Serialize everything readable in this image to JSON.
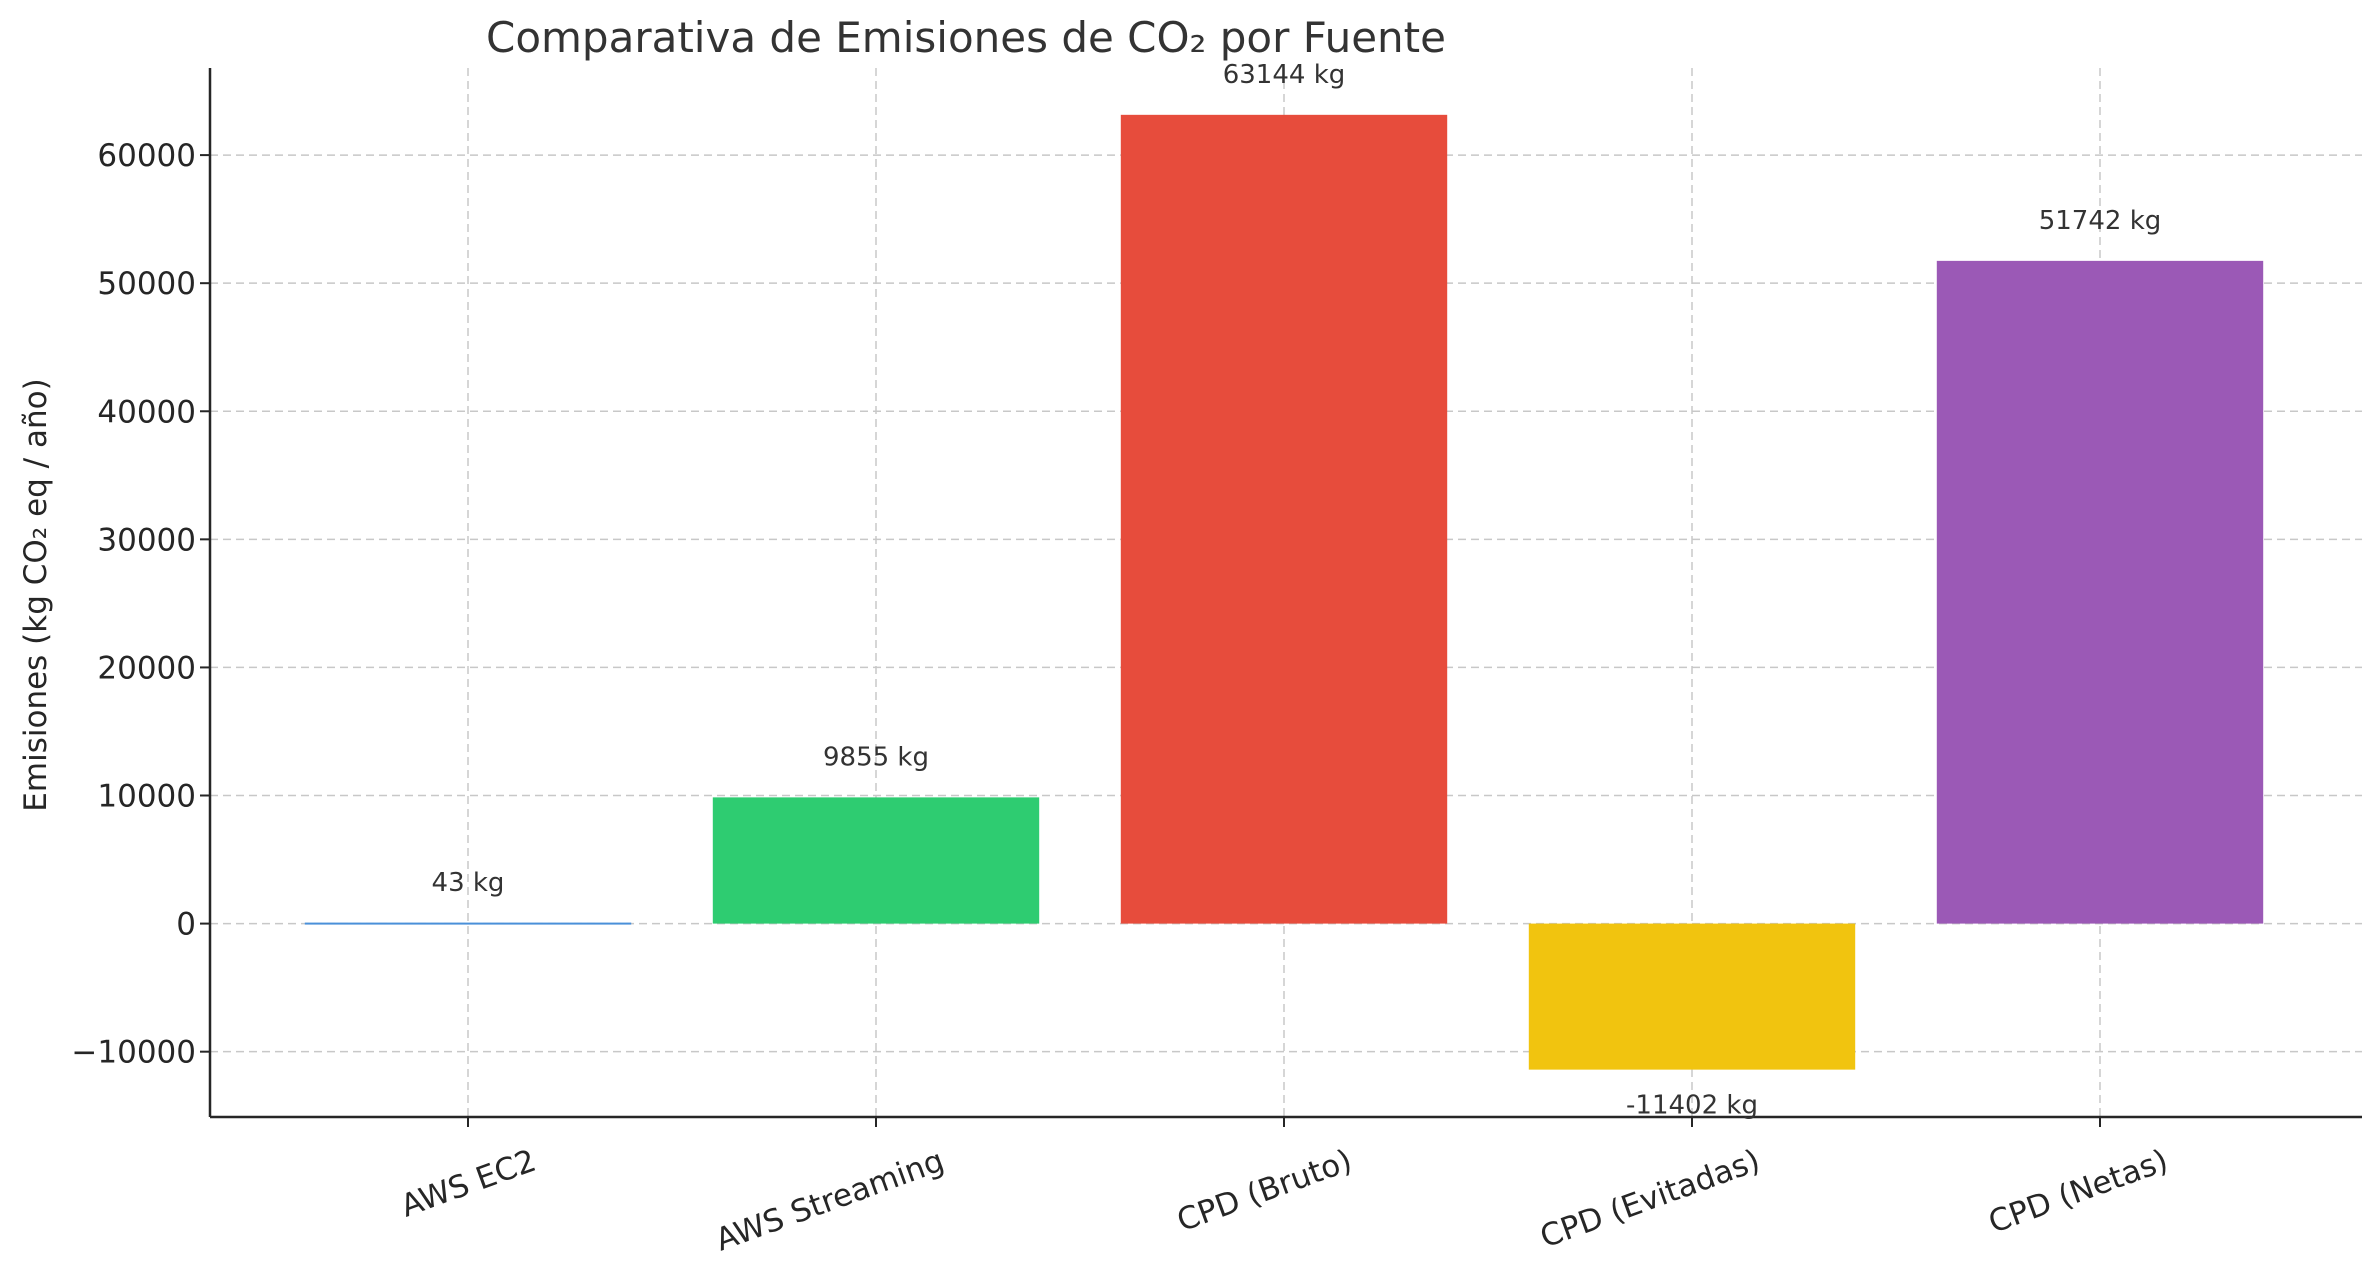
{
  "chart_data": {
    "type": "bar",
    "title": "Comparativa de Emisiones de CO₂ por Fuente",
    "xlabel": "",
    "ylabel": "Emisiones (kg CO₂ eq / año)",
    "categories": [
      "AWS EC2",
      "AWS Streaming",
      "CPD (Bruto)",
      "CPD (Evitadas)",
      "CPD (Netas)"
    ],
    "values": [
      43,
      9855,
      63144,
      -11402,
      51742
    ],
    "value_labels": [
      "43 kg",
      "9855 kg",
      "63144 kg",
      "-11402 kg",
      "51742 kg"
    ],
    "colors": [
      "#4a90d9",
      "#2ecc71",
      "#e74c3c",
      "#f1c40f",
      "#9b59b6"
    ],
    "ylim": [
      -15100,
      66800
    ],
    "yticks": [
      -10000,
      0,
      10000,
      20000,
      30000,
      40000,
      50000,
      60000
    ],
    "ytick_labels": [
      "−10000",
      "0",
      "10000",
      "20000",
      "30000",
      "40000",
      "50000",
      "60000"
    ],
    "grid": true,
    "xtick_rotation": -20
  }
}
